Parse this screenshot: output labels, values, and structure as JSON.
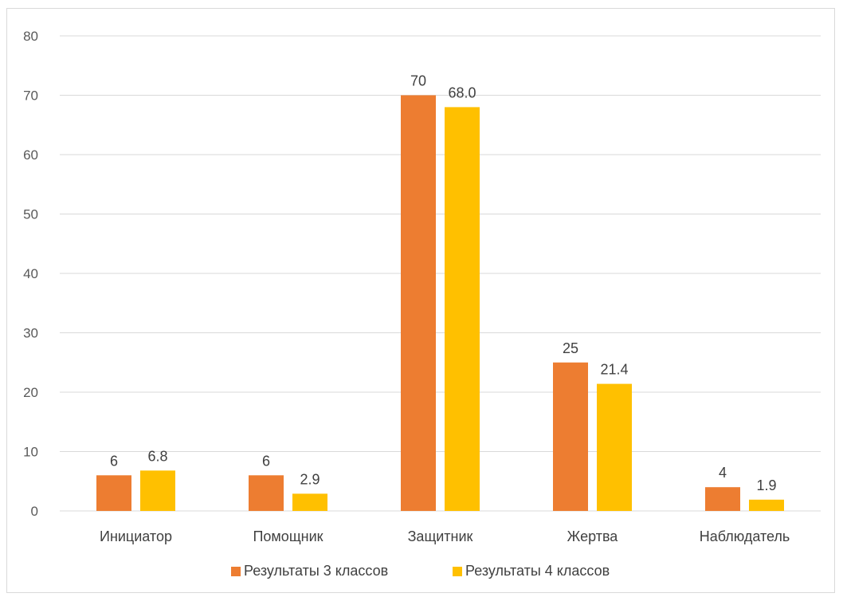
{
  "chart_data": {
    "type": "bar",
    "title": "",
    "xlabel": "",
    "ylabel": "",
    "categories": [
      "Инициатор",
      "Помощник",
      "Защитник",
      "Жертва",
      "Наблюдатель"
    ],
    "series": [
      {
        "name": "Результаты 3 классов",
        "color": "#ed7d31",
        "values": [
          6,
          6,
          70,
          25,
          4
        ],
        "labels": [
          "6",
          "6",
          "70",
          "25",
          "4"
        ]
      },
      {
        "name": "Результаты 4 классов",
        "color": "#ffc000",
        "values": [
          6.8,
          2.9,
          68.0,
          21.4,
          1.9
        ],
        "labels": [
          "6.8",
          "2.9",
          "68.0",
          "21.4",
          "1.9"
        ]
      }
    ],
    "ylim": [
      0,
      80
    ],
    "yticks": [
      "0",
      "10",
      "20",
      "30",
      "40",
      "50",
      "60",
      "70",
      "80"
    ],
    "grid": true,
    "gridline_color": "#d9d9d9",
    "legend_position": "bottom"
  }
}
